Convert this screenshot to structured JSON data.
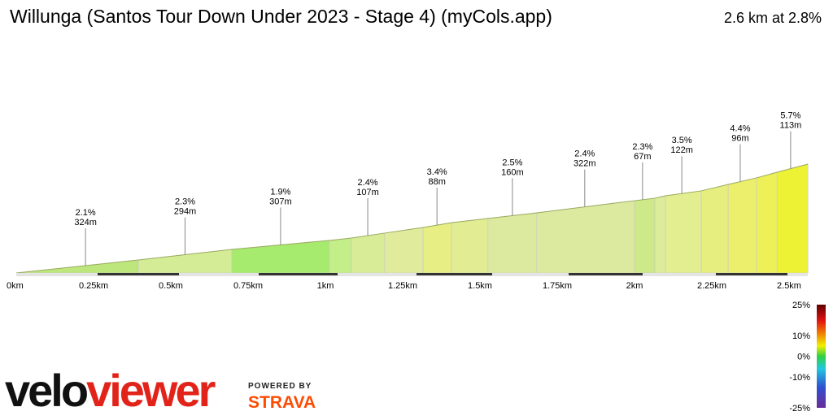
{
  "chart_data": {
    "type": "profile",
    "title": "Willunga (Santos Tour Down Under 2023 - Stage 4) (myCols.app)",
    "subtitle": "2.6 km at 2.8%",
    "xlim": [
      0,
      2.56
    ],
    "ylim": [
      0,
      80
    ],
    "xticks": [
      {
        "value": 0,
        "label": "0km"
      },
      {
        "value": 0.25,
        "label": "0.25km"
      },
      {
        "value": 0.5,
        "label": "0.5km"
      },
      {
        "value": 0.75,
        "label": "0.75km"
      },
      {
        "value": 1,
        "label": "1km"
      },
      {
        "value": 1.25,
        "label": "1.25km"
      },
      {
        "value": 1.5,
        "label": "1.5km"
      },
      {
        "value": 1.75,
        "label": "1.75km"
      },
      {
        "value": 2,
        "label": "2km"
      },
      {
        "value": 2.25,
        "label": "2.25km"
      },
      {
        "value": 2.5,
        "label": "2.5km"
      }
    ],
    "profile": {
      "x": [
        0,
        0.395,
        0.697,
        1.013,
        1.084,
        1.192,
        1.316,
        1.408,
        1.526,
        1.684,
        2.0,
        2.066,
        2.1,
        2.216,
        2.303,
        2.395,
        2.461,
        2.561
      ],
      "values": [
        0,
        8.7,
        15.8,
        21.8,
        23.4,
        26.7,
        30.5,
        33.7,
        36.5,
        40.3,
        48.4,
        50.1,
        51.7,
        55.0,
        59.3,
        63.7,
        67.5,
        72.9
      ],
      "colors": [
        "#bde67c",
        "#d4ec96",
        "#a6ea6e",
        "#c4ee88",
        "#d8ec98",
        "#e0ec9c",
        "#e6ee84",
        "#e2ec92",
        "#dceaa0",
        "#dceaa0",
        "#cde988",
        "#dcec9a",
        "#e2ee90",
        "#e6ee80",
        "#ecef6c",
        "#eef058",
        "#eef234"
      ]
    },
    "label_x": [
      0.224,
      0.546,
      0.855,
      1.137,
      1.361,
      1.605,
      1.839,
      2.026,
      2.153,
      2.342,
      2.505
    ],
    "gradient": {
      "values": [
        2.1,
        2.3,
        1.9,
        2.4,
        3.4,
        2.5,
        2.4,
        2.3,
        3.5,
        4.4,
        5.7
      ],
      "value_labels": [
        "2.1%",
        "2.3%",
        "1.9%",
        "2.4%",
        "3.4%",
        "2.5%",
        "2.4%",
        "2.3%",
        "3.5%",
        "4.4%",
        "5.7%"
      ]
    },
    "length": {
      "values": [
        324,
        294,
        307,
        107,
        88,
        160,
        322,
        67,
        122,
        96,
        113
      ],
      "value_labels": [
        "324m",
        "294m",
        "307m",
        "107m",
        "88m",
        "160m",
        "322m",
        "67m",
        "122m",
        "96m",
        "113m"
      ]
    },
    "color_scale": {
      "lim": [
        -25,
        25
      ],
      "ticks": [
        {
          "value": 25,
          "label": "25%"
        },
        {
          "value": 10,
          "label": "10%"
        },
        {
          "value": 0,
          "label": "0%"
        },
        {
          "value": -10,
          "label": "-10%"
        },
        {
          "value": -25,
          "label": "-25%"
        }
      ]
    }
  },
  "branding": {
    "logo_left": "velo",
    "logo_right": "viewer",
    "powered_by": "POWERED BY",
    "partner": "STRAVA"
  }
}
